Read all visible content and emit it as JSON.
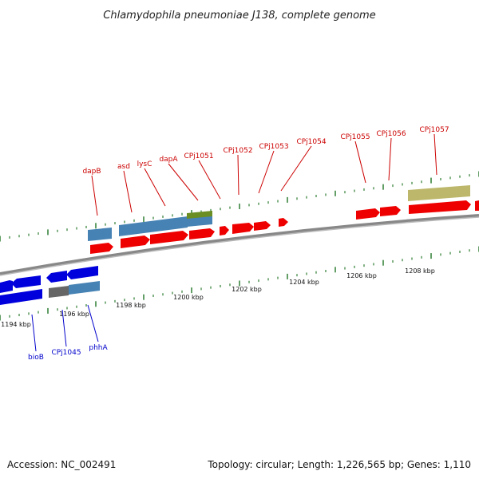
{
  "title": "Chlamydophila pneumoniae J138, complete genome",
  "footer": {
    "accession": "Accession: NC_002491",
    "summary": "Topology: circular; Length: 1,226,565 bp; Genes: 1,110"
  },
  "colors": {
    "forward_cds": "#ee0000",
    "reverse_cds": "#0000dd",
    "feature_blue": "#4682b4",
    "feature_green": "#6b8e23",
    "feature_khaki": "#bdb76b",
    "feature_gray": "#666666",
    "backbone": "#888888",
    "tick": "#2e7d32",
    "label_top": "#cc0000",
    "label_bottom": "#0000cc"
  },
  "ticks": {
    "labels": [
      "1194 kbp",
      "1196 kbp",
      "1198 kbp",
      "1200 kbp",
      "1202 kbp",
      "1204 kbp",
      "1206 kbp",
      "1208 kbp"
    ]
  },
  "genes_top": [
    "dapB",
    "asd",
    "lysC",
    "dapA",
    "CPj1051",
    "CPj1052",
    "CPj1053",
    "CPj1054",
    "CPj1055",
    "CPj1056",
    "CPj1057"
  ],
  "genes_bottom": [
    "bioB",
    "CPj1045",
    "phhA"
  ]
}
